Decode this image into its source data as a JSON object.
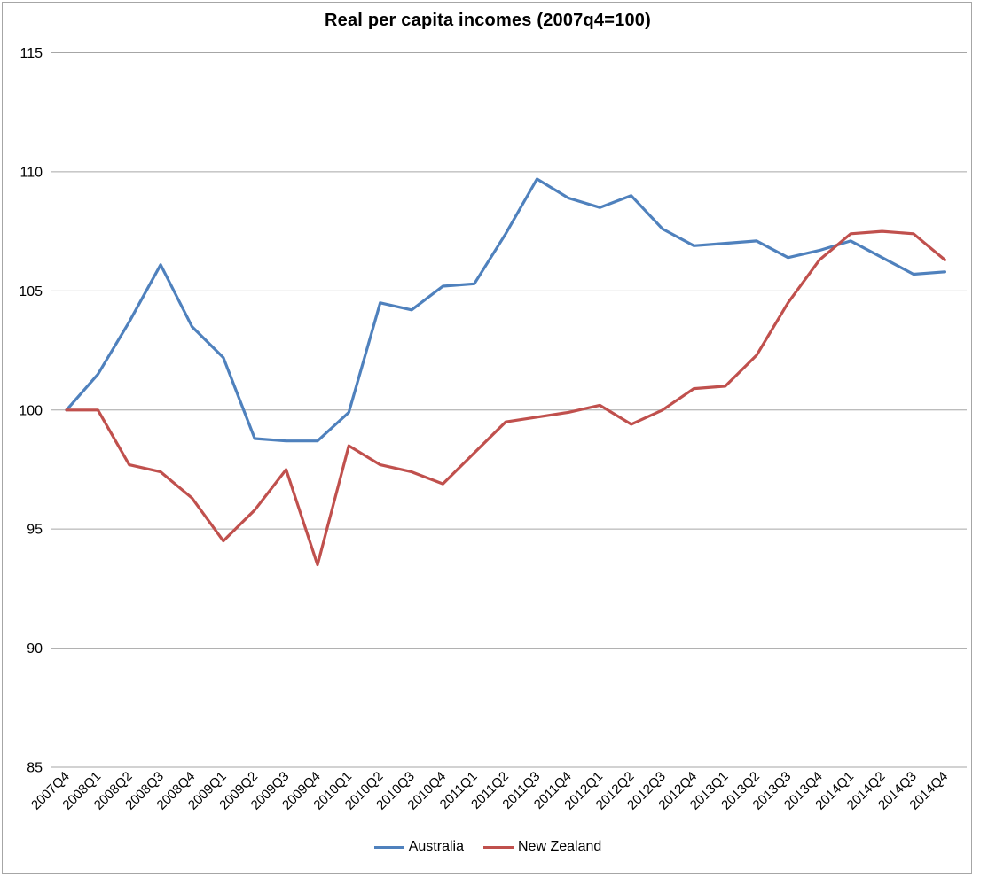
{
  "chart_data": {
    "type": "line",
    "title": "Real per capita incomes (2007q4=100)",
    "xlabel": "",
    "ylabel": "",
    "ylim": [
      85,
      115
    ],
    "yticks": [
      115,
      110,
      105,
      100,
      95,
      90,
      85
    ],
    "grid": "horizontal",
    "legend_position": "bottom",
    "categories": [
      "2007Q4",
      "2008Q1",
      "2008Q2",
      "2008Q3",
      "2008Q4",
      "2009Q1",
      "2009Q2",
      "2009Q3",
      "2009Q4",
      "2010Q1",
      "2010Q2",
      "2010Q3",
      "2010Q4",
      "2011Q1",
      "2011Q2",
      "2011Q3",
      "2011Q4",
      "2012Q1",
      "2012Q2",
      "2012Q3",
      "2012Q4",
      "2013Q1",
      "2013Q2",
      "2013Q3",
      "2013Q4",
      "2014Q1",
      "2014Q2",
      "2014Q3",
      "2014Q4"
    ],
    "series": [
      {
        "name": "Australia",
        "color": "#4F81BD",
        "values": [
          100.0,
          101.5,
          103.7,
          106.1,
          103.5,
          102.2,
          98.8,
          98.7,
          98.7,
          99.9,
          104.5,
          104.2,
          105.2,
          105.3,
          107.4,
          109.7,
          108.9,
          108.5,
          109.0,
          107.6,
          106.9,
          107.0,
          107.1,
          106.4,
          106.7,
          107.1,
          106.4,
          105.7,
          105.8
        ]
      },
      {
        "name": "New Zealand",
        "color": "#C0504D",
        "values": [
          100.0,
          100.0,
          97.7,
          97.4,
          96.3,
          94.5,
          95.8,
          97.5,
          93.5,
          98.5,
          97.7,
          97.4,
          96.9,
          98.2,
          99.5,
          99.7,
          99.9,
          100.2,
          99.4,
          100.0,
          100.9,
          101.0,
          102.3,
          104.5,
          106.3,
          107.4,
          107.5,
          107.4,
          106.3
        ]
      }
    ],
    "colors": {
      "gridline": "#a6a6a6",
      "text": "#000000",
      "border": "#a6a6a6",
      "background": "#ffffff"
    }
  }
}
